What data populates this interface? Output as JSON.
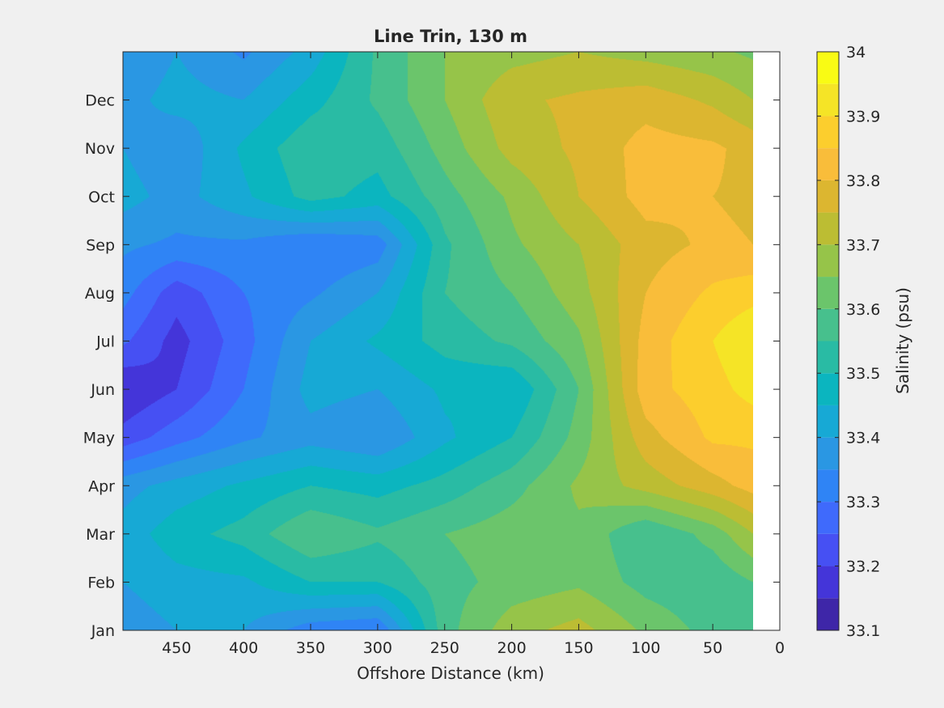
{
  "chart_data": {
    "type": "heatmap",
    "subtype": "filled-contour",
    "title": "Line Trin, 130 m",
    "xlabel": "Offshore Distance (km)",
    "ylabel": "",
    "xlim": [
      0,
      490
    ],
    "x_reversed": true,
    "x_ticks": [
      450,
      400,
      350,
      300,
      250,
      200,
      150,
      100,
      50,
      0
    ],
    "x_tick_labels": [
      "450",
      "400",
      "350",
      "300",
      "250",
      "200",
      "150",
      "100",
      "50",
      "0"
    ],
    "y_ticks": [
      1,
      2,
      3,
      4,
      5,
      6,
      7,
      8,
      9,
      10,
      11,
      12
    ],
    "y_tick_labels": [
      "Jan",
      "Feb",
      "Mar",
      "Apr",
      "May",
      "Jun",
      "Jul",
      "Aug",
      "Sep",
      "Oct",
      "Nov",
      "Dec"
    ],
    "ylim": [
      1,
      13
    ],
    "colorbar": {
      "label": "Salinity (psu)",
      "range": [
        33.1,
        34.0
      ],
      "levels": [
        33.1,
        33.15,
        33.2,
        33.25,
        33.3,
        33.35,
        33.4,
        33.45,
        33.5,
        33.55,
        33.6,
        33.65,
        33.7,
        33.75,
        33.8,
        33.85,
        33.9,
        33.95,
        34.0
      ],
      "tick_values": [
        33.1,
        33.2,
        33.3,
        33.4,
        33.5,
        33.6,
        33.7,
        33.8,
        33.9,
        34.0
      ],
      "tick_labels": [
        "33.1",
        "33.2",
        "33.3",
        "33.4",
        "33.5",
        "33.6",
        "33.7",
        "33.8",
        "33.9",
        "34"
      ],
      "colors": [
        "#3e26a8",
        "#4435d9",
        "#4650f3",
        "#3f6afc",
        "#2f84f5",
        "#2a97e3",
        "#17a9d5",
        "#0bb5bf",
        "#29bba4",
        "#47c08d",
        "#6bc56b",
        "#96c449",
        "#bcbd33",
        "#dcb630",
        "#f9bd3a",
        "#fcce2d",
        "#f5e426",
        "#f9fb14"
      ]
    },
    "data_extent_km": [
      20,
      490
    ],
    "grid": {
      "x": [
        490,
        450,
        400,
        350,
        300,
        250,
        200,
        150,
        100,
        50,
        20
      ],
      "months": [
        1,
        2,
        3,
        4,
        5,
        6,
        7,
        8,
        9,
        10,
        11,
        12,
        13
      ],
      "salinity_psu": [
        [
          33.37,
          33.4,
          33.4,
          33.32,
          33.3,
          33.58,
          33.68,
          33.72,
          33.64,
          33.58,
          33.56
        ],
        [
          33.4,
          33.43,
          33.44,
          33.5,
          33.5,
          33.58,
          33.62,
          33.64,
          33.58,
          33.56,
          33.6
        ],
        [
          33.42,
          33.48,
          33.52,
          33.6,
          33.56,
          33.6,
          33.63,
          33.64,
          33.55,
          33.62,
          33.7
        ],
        [
          33.38,
          33.42,
          33.46,
          33.5,
          33.48,
          33.52,
          33.58,
          33.66,
          33.72,
          33.78,
          33.82
        ],
        [
          33.22,
          33.28,
          33.34,
          33.38,
          33.35,
          33.44,
          33.5,
          33.62,
          33.78,
          33.86,
          33.86
        ],
        [
          33.15,
          33.2,
          33.3,
          33.42,
          33.4,
          33.46,
          33.45,
          33.6,
          33.83,
          33.88,
          33.92
        ],
        [
          33.26,
          33.18,
          33.28,
          33.4,
          33.46,
          33.52,
          33.56,
          33.64,
          33.82,
          33.9,
          33.95
        ],
        [
          33.32,
          33.22,
          33.3,
          33.34,
          33.4,
          33.55,
          33.6,
          33.68,
          33.8,
          33.86,
          33.88
        ],
        [
          33.36,
          33.34,
          33.34,
          33.3,
          33.32,
          33.54,
          33.64,
          33.7,
          33.78,
          33.81,
          33.8
        ],
        [
          33.42,
          33.38,
          33.44,
          33.52,
          33.48,
          33.58,
          33.66,
          33.75,
          33.82,
          33.8,
          33.79
        ],
        [
          33.4,
          33.36,
          33.46,
          33.54,
          33.52,
          33.62,
          33.72,
          33.76,
          33.82,
          33.81,
          33.78
        ],
        [
          33.38,
          33.42,
          33.4,
          33.48,
          33.56,
          33.65,
          33.74,
          33.76,
          33.78,
          33.74,
          33.7
        ],
        [
          33.35,
          33.4,
          33.34,
          33.42,
          33.56,
          33.65,
          33.68,
          33.7,
          33.68,
          33.66,
          33.64
        ]
      ]
    }
  }
}
